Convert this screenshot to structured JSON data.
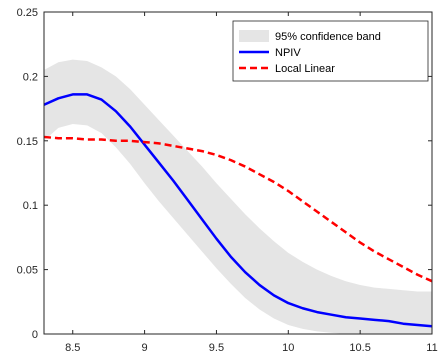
{
  "chart_data": {
    "type": "line",
    "title": "",
    "xlabel": "",
    "ylabel": "",
    "xlim": [
      8.3,
      11
    ],
    "ylim": [
      0,
      0.25
    ],
    "xticks": [
      8.5,
      9,
      9.5,
      10,
      10.5,
      11
    ],
    "xtick_labels": [
      "8.5",
      "9",
      "9.5",
      "10",
      "10.5",
      "11"
    ],
    "yticks": [
      0,
      0.05,
      0.1,
      0.15,
      0.2,
      0.25
    ],
    "ytick_labels": [
      "0",
      "0.05",
      "0.1",
      "0.15",
      "0.2",
      "0.25"
    ],
    "grid": false,
    "legend_position": "top-right",
    "x": [
      8.3,
      8.4,
      8.5,
      8.6,
      8.7,
      8.8,
      8.9,
      9.0,
      9.1,
      9.2,
      9.3,
      9.4,
      9.5,
      9.6,
      9.7,
      9.8,
      9.9,
      10.0,
      10.1,
      10.2,
      10.3,
      10.4,
      10.5,
      10.6,
      10.7,
      10.8,
      10.9,
      11.0
    ],
    "band": {
      "name": "95% confidence band",
      "color": "#e5e5e5",
      "lower": [
        0.15,
        0.16,
        0.163,
        0.162,
        0.156,
        0.145,
        0.132,
        0.117,
        0.103,
        0.09,
        0.077,
        0.064,
        0.051,
        0.039,
        0.028,
        0.019,
        0.012,
        0.007,
        0.004,
        0.002,
        0.001,
        0.0,
        0.0,
        0.0,
        0.0,
        0.0,
        0.0,
        0.0
      ],
      "upper": [
        0.205,
        0.211,
        0.213,
        0.212,
        0.207,
        0.2,
        0.19,
        0.178,
        0.166,
        0.154,
        0.142,
        0.13,
        0.117,
        0.105,
        0.093,
        0.082,
        0.072,
        0.063,
        0.056,
        0.05,
        0.045,
        0.041,
        0.038,
        0.036,
        0.035,
        0.034,
        0.033,
        0.033
      ]
    },
    "series": [
      {
        "name": "NPIV",
        "color": "#0000ff",
        "style": "solid",
        "values": [
          0.178,
          0.183,
          0.186,
          0.186,
          0.182,
          0.173,
          0.161,
          0.147,
          0.133,
          0.119,
          0.104,
          0.089,
          0.074,
          0.06,
          0.048,
          0.038,
          0.03,
          0.024,
          0.02,
          0.017,
          0.015,
          0.013,
          0.012,
          0.011,
          0.01,
          0.008,
          0.007,
          0.006
        ]
      },
      {
        "name": "Local Linear",
        "color": "#ff0000",
        "style": "dashed",
        "values": [
          0.153,
          0.152,
          0.152,
          0.151,
          0.151,
          0.15,
          0.15,
          0.149,
          0.148,
          0.146,
          0.144,
          0.142,
          0.139,
          0.135,
          0.13,
          0.124,
          0.118,
          0.111,
          0.103,
          0.095,
          0.087,
          0.079,
          0.071,
          0.064,
          0.058,
          0.052,
          0.046,
          0.041
        ]
      }
    ]
  }
}
